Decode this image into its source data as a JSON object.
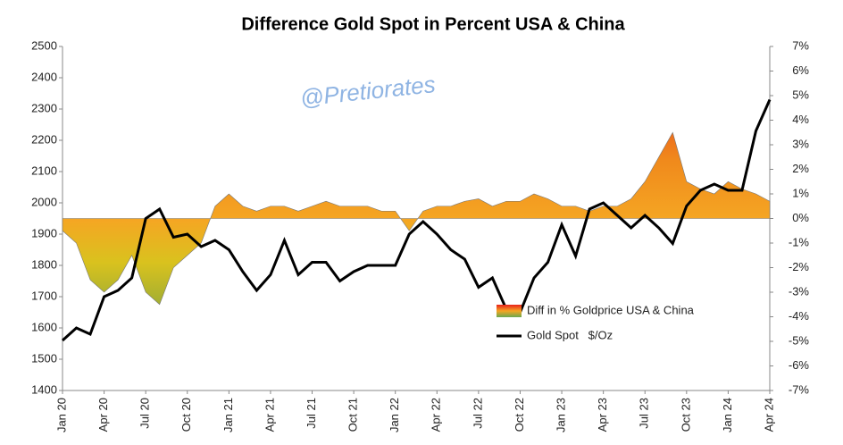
{
  "chart_data": {
    "type": "line",
    "title": "Difference Gold Spot in Percent USA & China",
    "annotation": "@Pretiorates",
    "categories": [
      "Jan 20",
      null,
      null,
      "Apr 20",
      null,
      null,
      "Jul 20",
      null,
      null,
      "Oct 20",
      null,
      null,
      "Jan 21",
      null,
      null,
      "Apr 21",
      null,
      null,
      "Jul 21",
      null,
      null,
      "Oct 21",
      null,
      null,
      "Jan 22",
      null,
      null,
      "Apr 22",
      null,
      null,
      "Jul 22",
      null,
      null,
      "Oct 22",
      null,
      null,
      "Jan 23",
      null,
      null,
      "Apr 23",
      null,
      null,
      "Jul 23",
      null,
      null,
      "Oct 23",
      null,
      null,
      "Jan 24",
      null,
      null,
      "Apr 24"
    ],
    "series": [
      {
        "name": "Diff in % Goldprice USA & China",
        "type": "area",
        "axis": "y2",
        "color": "#f5a623",
        "values": [
          -0.5,
          -1,
          -2.5,
          -3,
          -2.5,
          -1.5,
          -3,
          -3.5,
          -2,
          -1.5,
          -1,
          0.5,
          1,
          0.5,
          0.3,
          0.5,
          0.5,
          0.3,
          0.5,
          0.7,
          0.5,
          0.5,
          0.5,
          0.3,
          0.3,
          -0.5,
          0.3,
          0.5,
          0.5,
          0.7,
          0.8,
          0.5,
          0.7,
          0.7,
          1,
          0.8,
          0.5,
          0.5,
          0.3,
          0.5,
          0.5,
          0.8,
          1.5,
          2.5,
          3.5,
          1.5,
          1.2,
          1,
          1.5,
          1.2,
          1,
          0.7
        ]
      },
      {
        "name": "Gold Spot   $/Oz",
        "type": "line",
        "color": "#000000",
        "values": [
          1560,
          1600,
          1580,
          1700,
          1720,
          1760,
          1950,
          1980,
          1890,
          1900,
          1860,
          1880,
          1850,
          1780,
          1720,
          1770,
          1880,
          1770,
          1810,
          1810,
          1750,
          1780,
          1800,
          1800,
          1800,
          1900,
          1940,
          1900,
          1850,
          1820,
          1730,
          1760,
          1660,
          1650,
          1760,
          1810,
          1930,
          1830,
          1980,
          2000,
          1960,
          1920,
          1960,
          1920,
          1870,
          1990,
          2040,
          2060,
          2040,
          2040,
          2230,
          2330
        ]
      }
    ],
    "ylim": [
      1400,
      2500
    ],
    "yticks": [
      1400,
      1500,
      1600,
      1700,
      1800,
      1900,
      2000,
      2100,
      2200,
      2300,
      2400,
      2500
    ],
    "y2lim": [
      -7,
      7
    ],
    "y2ticks": [
      {
        "value": -7,
        "label": "-7%"
      },
      {
        "value": -6,
        "label": "-6%"
      },
      {
        "value": -5,
        "label": "-5%"
      },
      {
        "value": -4,
        "label": "-4%"
      },
      {
        "value": -3,
        "label": "-3%"
      },
      {
        "value": -2,
        "label": "-2%"
      },
      {
        "value": -1,
        "label": "-1%"
      },
      {
        "value": 0,
        "label": "0%"
      },
      {
        "value": 1,
        "label": "1%"
      },
      {
        "value": 2,
        "label": "2%"
      },
      {
        "value": 3,
        "label": "3%"
      },
      {
        "value": 4,
        "label": "4%"
      },
      {
        "value": 5,
        "label": "5%"
      },
      {
        "value": 6,
        "label": "6%"
      },
      {
        "value": 7,
        "label": "7%"
      }
    ],
    "legend": "bottom-right",
    "grid": false
  }
}
